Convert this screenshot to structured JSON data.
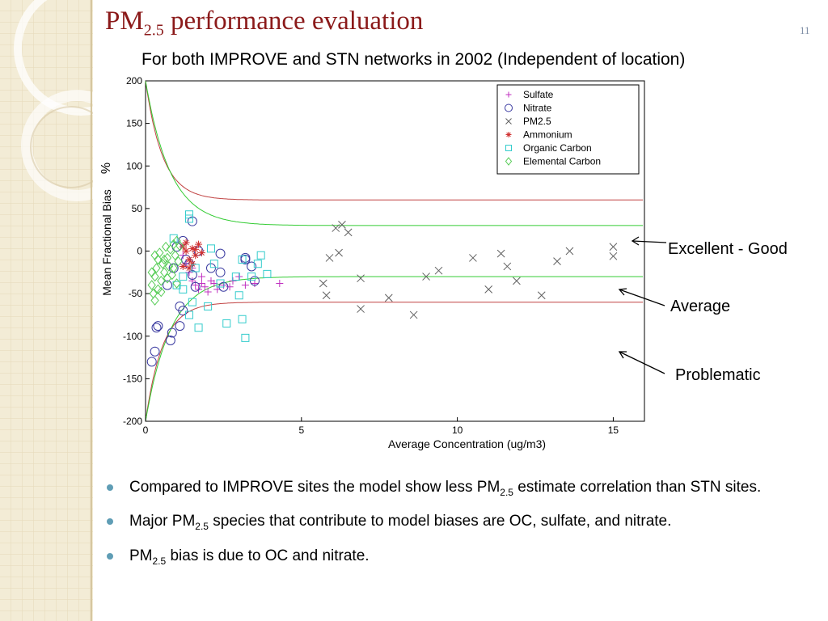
{
  "slide": {
    "title_main": "PM",
    "title_sub": "2.5",
    "title_rest": " performance evaluation",
    "slide_number": "11",
    "subtitle": "For both IMPROVE and STN networks in 2002 (Independent of location)"
  },
  "annotations": {
    "excellent_good": "Excellent - Good",
    "average": "Average",
    "problematic": "Problematic"
  },
  "bullets": [
    {
      "pre": "Compared to IMPROVE sites the model show less PM",
      "sub": "2.5",
      "post": " estimate correlation than STN sites."
    },
    {
      "pre": "Major PM",
      "sub": "2.5",
      "post": " species that contribute to model biases are OC, sulfate, and nitrate."
    },
    {
      "pre": "PM",
      "sub": "2.5",
      "post": " bias is due to OC and nitrate."
    }
  ],
  "colors": {
    "title": "#8b1a1a",
    "bullet": "#5f9db5",
    "goal_curve": "#c04040",
    "criteria_curve": "#33cc33",
    "sulfate": "#c030c0",
    "nitrate": "#3a3aa0",
    "pm25": "#606060",
    "ammonium": "#d03030",
    "organic_carbon": "#33cccc",
    "elemental_carbon": "#55cc55"
  },
  "chart_data": {
    "type": "scatter",
    "title": "",
    "xlabel": "Average Concentration (ug/m3)",
    "ylabel": "Mean Fractional Bias",
    "ylabel_unit": "%",
    "xlim": [
      0,
      16
    ],
    "ylim": [
      -200,
      200
    ],
    "xticks": [
      "0",
      "5",
      "10",
      "15"
    ],
    "xtick_values": [
      0,
      5,
      10,
      15
    ],
    "yticks": [
      "200",
      "150",
      "100",
      "50",
      "0",
      "-50",
      "-100",
      "-150",
      "-200"
    ],
    "ytick_values": [
      200,
      150,
      100,
      50,
      0,
      -50,
      -100,
      -150,
      -200
    ],
    "legend_position": "top-right",
    "reference_curves": [
      {
        "name": "goal",
        "asymptote": 60,
        "color": "#c04040"
      },
      {
        "name": "criteria",
        "asymptote": 30,
        "color": "#33cc33"
      }
    ],
    "series": [
      {
        "name": "Sulfate",
        "marker": "plus",
        "color": "#c030c0",
        "points": [
          [
            1.2,
            -5
          ],
          [
            1.3,
            -15
          ],
          [
            1.4,
            -25
          ],
          [
            1.5,
            -35
          ],
          [
            1.6,
            -40
          ],
          [
            1.7,
            -45
          ],
          [
            1.8,
            -38
          ],
          [
            1.9,
            -42
          ],
          [
            2.0,
            -48
          ],
          [
            2.1,
            -35
          ],
          [
            2.3,
            -45
          ],
          [
            2.5,
            -40
          ],
          [
            2.7,
            -42
          ],
          [
            3.0,
            -30
          ],
          [
            3.2,
            -40
          ],
          [
            3.5,
            -38
          ],
          [
            4.3,
            -38
          ],
          [
            1.5,
            -20
          ],
          [
            1.8,
            -30
          ],
          [
            2.2,
            -38
          ],
          [
            2.8,
            -35
          ],
          [
            1.4,
            -10
          ]
        ]
      },
      {
        "name": "Nitrate",
        "marker": "circle",
        "color": "#3a3aa0",
        "points": [
          [
            0.2,
            -130
          ],
          [
            0.3,
            -118
          ],
          [
            0.35,
            -90
          ],
          [
            0.4,
            -88
          ],
          [
            0.8,
            -105
          ],
          [
            0.85,
            -96
          ],
          [
            0.9,
            -20
          ],
          [
            1.1,
            -65
          ],
          [
            1.1,
            -88
          ],
          [
            1.2,
            -70
          ],
          [
            1.3,
            -10
          ],
          [
            1.5,
            -28
          ],
          [
            1.5,
            35
          ],
          [
            1.6,
            -42
          ],
          [
            1.7,
            0
          ],
          [
            2.1,
            -20
          ],
          [
            2.4,
            -3
          ],
          [
            2.4,
            -25
          ],
          [
            2.5,
            -42
          ],
          [
            3.2,
            -8
          ],
          [
            3.4,
            -18
          ],
          [
            3.5,
            -35
          ],
          [
            0.7,
            -40
          ],
          [
            1.0,
            5
          ],
          [
            1.4,
            -15
          ],
          [
            3.2,
            -10
          ],
          [
            1.2,
            12
          ]
        ]
      },
      {
        "name": "PM2.5",
        "marker": "x",
        "color": "#606060",
        "points": [
          [
            5.7,
            -38
          ],
          [
            5.8,
            -52
          ],
          [
            5.9,
            -8
          ],
          [
            6.1,
            27
          ],
          [
            6.2,
            -2
          ],
          [
            6.3,
            31
          ],
          [
            6.5,
            22
          ],
          [
            6.9,
            -32
          ],
          [
            6.9,
            -68
          ],
          [
            7.8,
            -55
          ],
          [
            8.6,
            -75
          ],
          [
            9.0,
            -30
          ],
          [
            9.4,
            -23
          ],
          [
            10.5,
            -8
          ],
          [
            11.0,
            -45
          ],
          [
            11.4,
            -3
          ],
          [
            11.6,
            -18
          ],
          [
            11.9,
            -35
          ],
          [
            12.7,
            -52
          ],
          [
            13.2,
            -12
          ],
          [
            13.6,
            0
          ],
          [
            15.0,
            5
          ],
          [
            15.0,
            -6
          ]
        ]
      },
      {
        "name": "Ammonium",
        "marker": "star",
        "color": "#d03030",
        "points": [
          [
            1.2,
            5
          ],
          [
            1.3,
            0
          ],
          [
            1.4,
            -10
          ],
          [
            1.5,
            3
          ],
          [
            1.6,
            -5
          ],
          [
            1.7,
            8
          ],
          [
            1.8,
            -2
          ],
          [
            1.4,
            -20
          ],
          [
            1.3,
            10
          ],
          [
            1.5,
            -15
          ],
          [
            1.6,
            2
          ],
          [
            1.2,
            -18
          ]
        ]
      },
      {
        "name": "Organic Carbon",
        "marker": "square",
        "color": "#33cccc",
        "points": [
          [
            1.4,
            43
          ],
          [
            1.4,
            38
          ],
          [
            1.0,
            -40
          ],
          [
            1.2,
            -45
          ],
          [
            1.5,
            -60
          ],
          [
            1.4,
            -75
          ],
          [
            1.7,
            -90
          ],
          [
            2.0,
            -65
          ],
          [
            2.1,
            3
          ],
          [
            2.4,
            -38
          ],
          [
            2.6,
            -85
          ],
          [
            2.9,
            -30
          ],
          [
            3.0,
            -52
          ],
          [
            3.1,
            -80
          ],
          [
            3.2,
            -102
          ],
          [
            3.4,
            -30
          ],
          [
            3.6,
            -15
          ],
          [
            3.7,
            -5
          ],
          [
            3.9,
            -27
          ],
          [
            1.6,
            -20
          ],
          [
            2.2,
            -15
          ],
          [
            0.9,
            15
          ],
          [
            1.2,
            -30
          ],
          [
            3.1,
            -10
          ]
        ]
      },
      {
        "name": "Elemental Carbon",
        "marker": "diamond",
        "color": "#55cc55",
        "points": [
          [
            0.2,
            -40
          ],
          [
            0.25,
            -50
          ],
          [
            0.3,
            -58
          ],
          [
            0.3,
            -30
          ],
          [
            0.35,
            -20
          ],
          [
            0.4,
            -10
          ],
          [
            0.4,
            -45
          ],
          [
            0.45,
            -2
          ],
          [
            0.5,
            -35
          ],
          [
            0.55,
            -15
          ],
          [
            0.6,
            -25
          ],
          [
            0.65,
            5
          ],
          [
            0.7,
            -8
          ],
          [
            0.75,
            -18
          ],
          [
            0.8,
            2
          ],
          [
            0.85,
            -28
          ],
          [
            0.9,
            8
          ],
          [
            0.95,
            -5
          ],
          [
            1.0,
            12
          ],
          [
            1.05,
            -12
          ],
          [
            1.1,
            6
          ],
          [
            0.3,
            -5
          ],
          [
            0.5,
            -48
          ],
          [
            0.6,
            -10
          ],
          [
            0.7,
            -32
          ],
          [
            0.9,
            -20
          ],
          [
            1.0,
            -38
          ],
          [
            0.2,
            -25
          ]
        ]
      }
    ]
  }
}
